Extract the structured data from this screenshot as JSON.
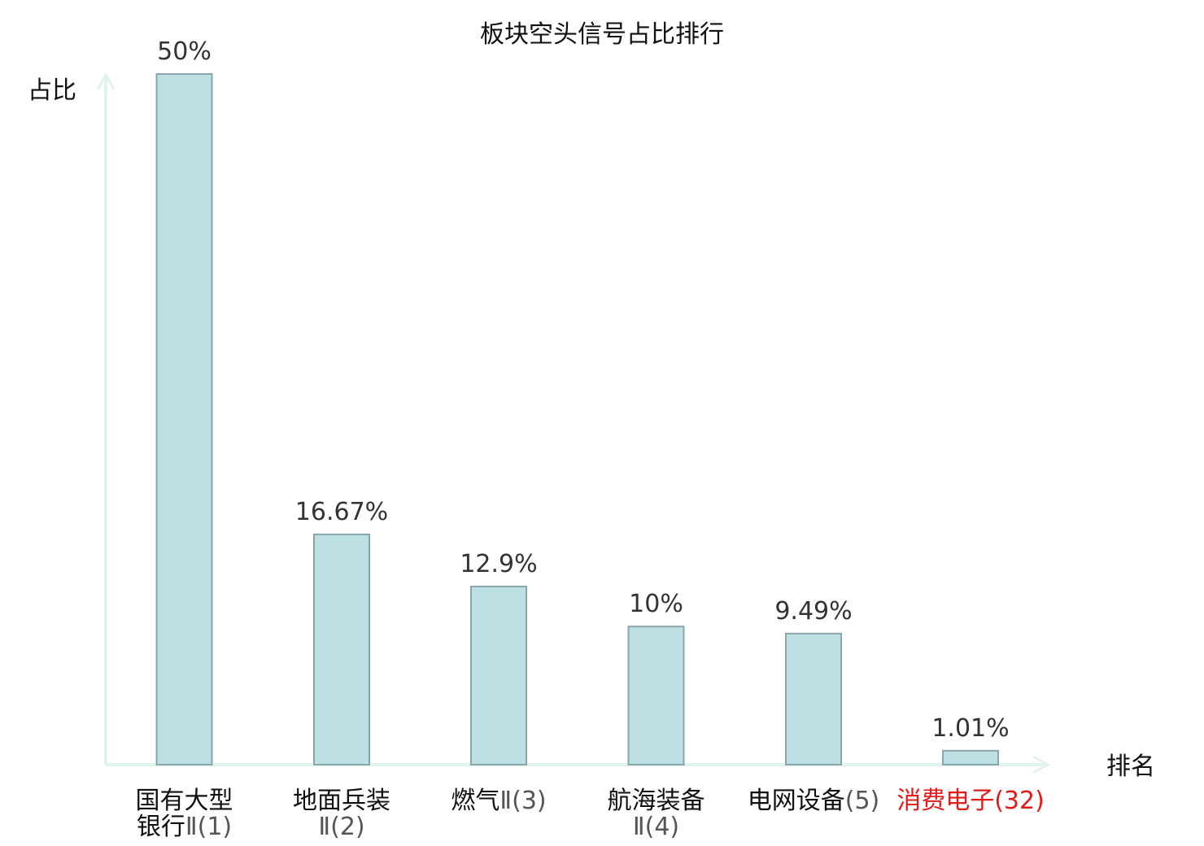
{
  "chart_data": {
    "type": "bar",
    "title": "板块空头信号占比排行",
    "ylabel": "占比",
    "xlabel": "排名",
    "ylim": [
      0,
      50
    ],
    "categories": [
      [
        "国有大型",
        "银行Ⅱ(1)"
      ],
      [
        "地面兵装",
        "Ⅱ(2)"
      ],
      [
        "燃气Ⅱ(3)"
      ],
      [
        "航海装备",
        "Ⅱ(4)"
      ],
      [
        "电网设备(5)"
      ],
      [
        "消费电子(32)"
      ]
    ],
    "values": [
      50,
      16.67,
      12.9,
      10,
      9.49,
      1.01
    ],
    "value_labels": [
      "50%",
      "16.67%",
      "12.9%",
      "10%",
      "9.49%",
      "1.01%"
    ],
    "highlight_index": 5,
    "colors": {
      "bar_fill": "#bde0e3",
      "bar_stroke": "#8aa6aa",
      "axis": "#e1f3ef",
      "label_normal": "#111111",
      "label_highlight": "#e41a1a",
      "number_normal": "#555555",
      "value_text": "#333333"
    },
    "grid": false
  }
}
